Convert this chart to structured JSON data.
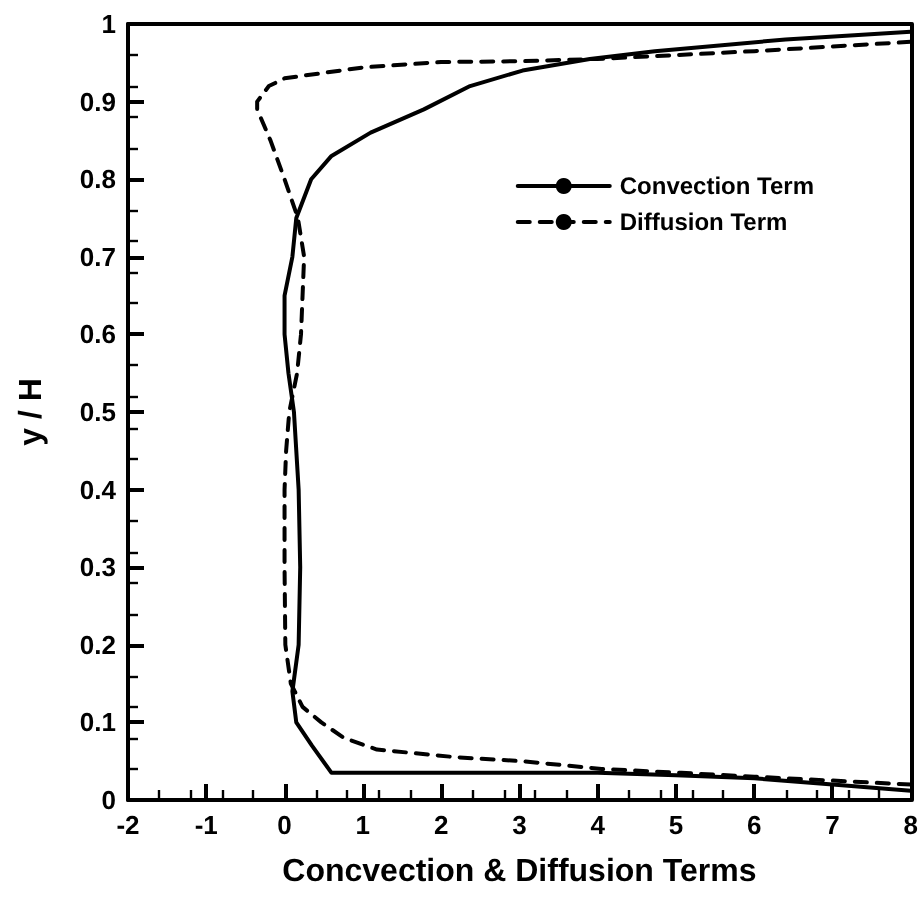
{
  "chart_data": {
    "type": "line",
    "xlabel": "Concvection & Diffusion Terms",
    "ylabel": "y / H",
    "xlim": [
      -2,
      8
    ],
    "ylim": [
      0,
      1
    ],
    "xticks": [
      -2,
      -1,
      0,
      1,
      2,
      3,
      4,
      5,
      6,
      7,
      8
    ],
    "yticks": [
      0,
      0.1,
      0.2,
      0.3,
      0.4,
      0.5,
      0.6,
      0.7,
      0.8,
      0.9,
      1
    ],
    "grid": false,
    "legend": "top right",
    "marker": "none",
    "series": [
      {
        "name": "Convection Term",
        "color": "#000000",
        "line_style": "solid",
        "x": [
          8,
          7,
          6,
          5,
          4,
          3,
          2,
          1,
          0.6,
          0.35,
          0.15,
          0.1,
          0.18,
          0.2,
          0.18,
          0.12,
          0.05,
          0,
          0,
          0.1,
          0.15,
          0.34,
          0.6,
          1.1,
          1.78,
          2.37,
          3.04,
          3.9,
          4.73,
          6.4,
          8
        ],
        "values": [
          0.012,
          0.02,
          0.028,
          0.032,
          0.035,
          0.035,
          0.035,
          0.035,
          0.035,
          0.07,
          0.1,
          0.14,
          0.2,
          0.3,
          0.4,
          0.5,
          0.55,
          0.6,
          0.65,
          0.7,
          0.75,
          0.8,
          0.83,
          0.86,
          0.89,
          0.92,
          0.94,
          0.955,
          0.965,
          0.98,
          0.99
        ]
      },
      {
        "name": "Diffusion Term",
        "color": "#000000",
        "line_style": "dashed",
        "x": [
          8,
          7,
          6,
          5.07,
          4.05,
          3.04,
          2.2,
          1.18,
          0.76,
          0.47,
          0.23,
          0.08,
          0.01,
          0,
          0,
          0.02,
          0.06,
          0.16,
          0.21,
          0.23,
          0.25,
          0.17,
          0,
          -0.18,
          -0.35,
          -0.35,
          -0.2,
          0,
          1,
          2,
          3,
          4,
          6,
          8
        ],
        "values": [
          0.02,
          0.025,
          0.03,
          0.035,
          0.04,
          0.05,
          0.055,
          0.065,
          0.08,
          0.1,
          0.12,
          0.15,
          0.2,
          0.3,
          0.4,
          0.45,
          0.5,
          0.55,
          0.6,
          0.65,
          0.7,
          0.75,
          0.8,
          0.85,
          0.89,
          0.9,
          0.92,
          0.93,
          0.944,
          0.951,
          0.952,
          0.955,
          0.965,
          0.977
        ]
      }
    ]
  }
}
